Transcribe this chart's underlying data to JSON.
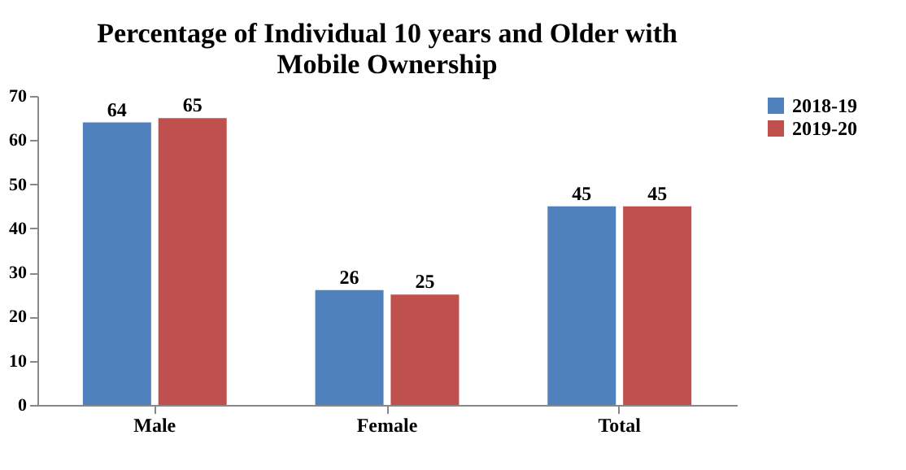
{
  "chart_data": {
    "type": "bar",
    "title": "Percentage of Individual 10 years and Older with Mobile Ownership",
    "categories": [
      "Male",
      "Female",
      "Total"
    ],
    "series": [
      {
        "name": "2018-19",
        "color": "#4f81bd",
        "values": [
          64,
          26,
          45
        ]
      },
      {
        "name": "2019-20",
        "color": "#c0504d",
        "values": [
          65,
          25,
          45
        ]
      }
    ],
    "ylim": [
      0,
      70
    ],
    "yticks": [
      0,
      10,
      20,
      30,
      40,
      50,
      60,
      70
    ],
    "grid": false,
    "legend": "right",
    "data_labels": true
  }
}
